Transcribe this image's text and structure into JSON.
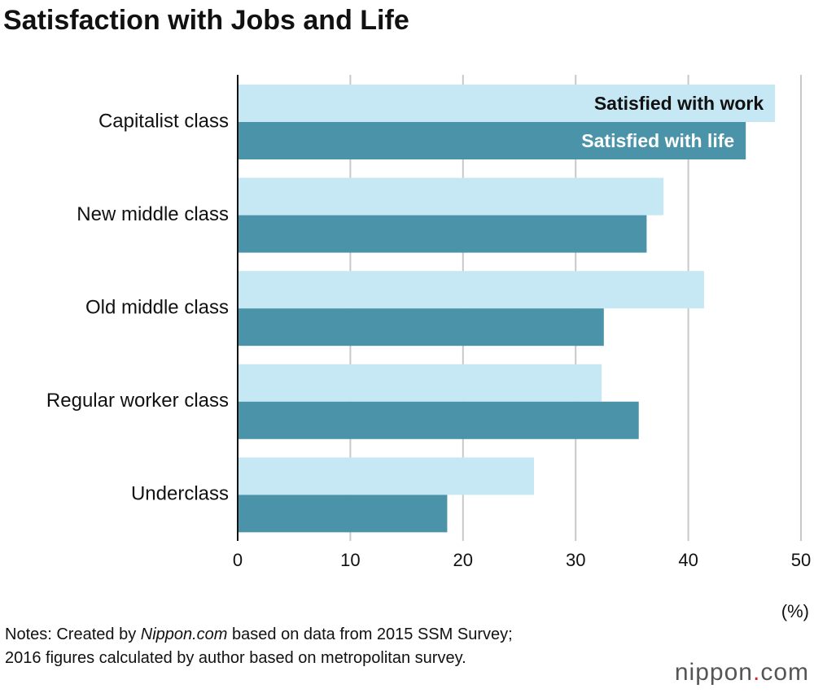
{
  "chart_data": {
    "type": "hbar",
    "title": "Satisfaction with Jobs and Life",
    "categories": [
      "Capitalist class",
      "New middle class",
      "Old middle class",
      "Regular worker class",
      "Underclass"
    ],
    "series": [
      {
        "name": "Satisfied with work",
        "color": "#c6e8f4",
        "values": [
          47.7,
          37.8,
          41.4,
          32.3,
          26.3
        ]
      },
      {
        "name": "Satisfied with life",
        "color": "#4a93a8",
        "values": [
          45.1,
          36.3,
          32.5,
          35.6,
          18.6
        ]
      }
    ],
    "xlim": [
      0,
      50
    ],
    "xticks": [
      0,
      10,
      20,
      30,
      40,
      50
    ],
    "grid": true,
    "unit": "(%)",
    "notes": [
      "Notes: Created by ",
      "Nippon.com",
      " based on data from 2015 SSM Survey; 2016 figures calculated by author based on metropolitan survey."
    ],
    "logo": [
      "nippon",
      ".",
      "com"
    ]
  }
}
